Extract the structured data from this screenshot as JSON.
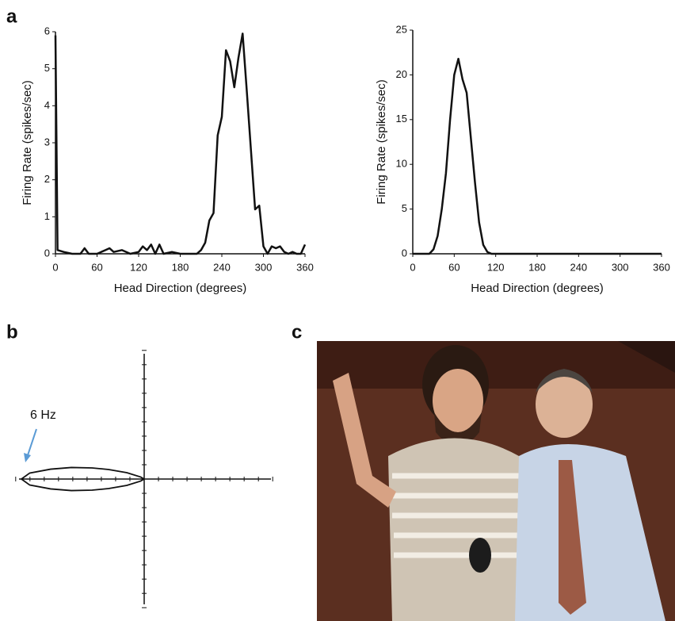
{
  "panel_labels": [
    "a",
    "b",
    "c"
  ],
  "chart_data": [
    {
      "type": "line",
      "x_label": "Head Direction (degrees)",
      "y_label": "Firing Rate (spikes/sec)",
      "xlim": [
        0,
        360
      ],
      "xticks": [
        0,
        60,
        120,
        180,
        240,
        300,
        360
      ],
      "ylim": [
        0,
        6
      ],
      "yticks": [
        0,
        1,
        2,
        3,
        4,
        5,
        6
      ],
      "color": "#111111",
      "x": [
        0,
        3,
        12,
        24,
        36,
        42,
        48,
        60,
        72,
        78,
        84,
        96,
        108,
        120,
        126,
        132,
        138,
        144,
        150,
        156,
        168,
        180,
        192,
        204,
        210,
        216,
        222,
        228,
        234,
        240,
        246,
        252,
        258,
        264,
        270,
        276,
        282,
        288,
        294,
        300,
        306,
        312,
        318,
        324,
        330,
        336,
        342,
        348,
        354,
        360
      ],
      "values": [
        5.9,
        0.1,
        0.05,
        0,
        0,
        0.15,
        0,
        0,
        0.1,
        0.15,
        0.05,
        0.1,
        0,
        0.05,
        0.2,
        0.1,
        0.25,
        0,
        0.25,
        0,
        0.05,
        0,
        0,
        0,
        0.1,
        0.3,
        0.9,
        1.1,
        3.2,
        3.7,
        5.5,
        5.2,
        4.5,
        5.3,
        5.95,
        4.4,
        2.8,
        1.2,
        1.3,
        0.2,
        0,
        0.2,
        0.15,
        0.2,
        0.05,
        0,
        0.05,
        0,
        0,
        0.25
      ]
    },
    {
      "type": "line",
      "x_label": "Head Direction (degrees)",
      "y_label": "Firing Rate (spikes/sec)",
      "xlim": [
        0,
        360
      ],
      "xticks": [
        0,
        60,
        120,
        180,
        240,
        300,
        360
      ],
      "ylim": [
        0,
        25
      ],
      "yticks": [
        0,
        5,
        10,
        15,
        20,
        25
      ],
      "color": "#111111",
      "x": [
        0,
        12,
        24,
        30,
        36,
        42,
        48,
        54,
        60,
        66,
        72,
        78,
        84,
        90,
        96,
        102,
        108,
        114,
        120,
        180,
        240,
        300,
        360
      ],
      "values": [
        0,
        0,
        0,
        0.5,
        2,
        5,
        9,
        15,
        20,
        21.8,
        19.5,
        18,
        13,
        8,
        3.5,
        1,
        0.2,
        0,
        0,
        0,
        0,
        0,
        0
      ]
    },
    {
      "type": "polar",
      "annotation": "6 Hz",
      "rlim": [
        0,
        6
      ],
      "color": "#111111",
      "theta": [
        150,
        160,
        165,
        168,
        171,
        174,
        177,
        180,
        183,
        186,
        189,
        192,
        195,
        200,
        210
      ],
      "values": [
        0.2,
        0.9,
        1.8,
        2.6,
        3.6,
        4.6,
        5.6,
        6,
        5.6,
        4.6,
        3.6,
        2.6,
        1.8,
        0.9,
        0.2
      ]
    }
  ]
}
